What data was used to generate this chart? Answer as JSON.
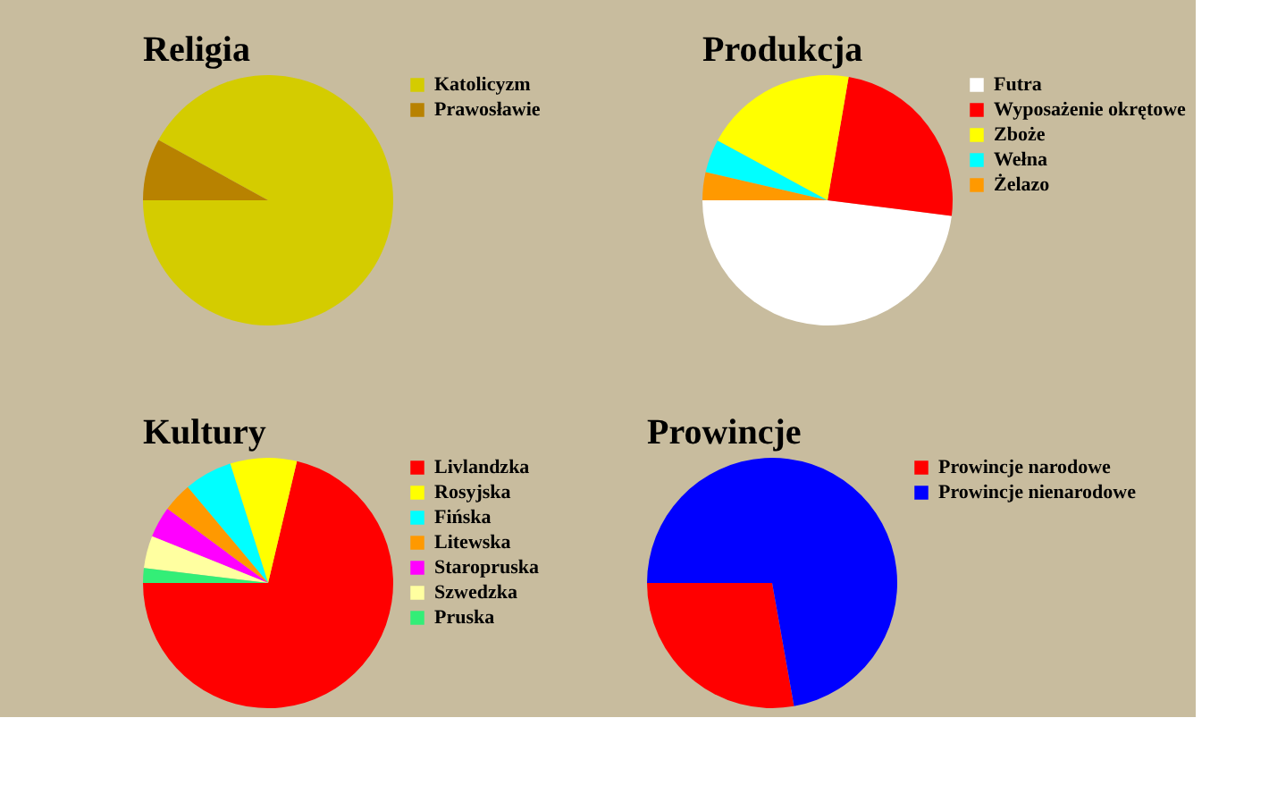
{
  "chart_data": [
    {
      "type": "pie",
      "title": "Religia",
      "categories": [
        "Katolicyzm",
        "Prawosławie"
      ],
      "values": [
        92,
        8
      ],
      "colors": [
        "#d4cc00",
        "#b88200"
      ],
      "legend": "right"
    },
    {
      "type": "pie",
      "title": "Produkcja",
      "categories": [
        "Futra",
        "Wyposażenie okrętowe",
        "Zboże",
        "Wełna",
        "Żelazo"
      ],
      "values": [
        48,
        24.3,
        19.8,
        4.3,
        3.6
      ],
      "colors": [
        "#ffffff",
        "#ff0000",
        "#ffff00",
        "#00ffff",
        "#ff9900"
      ],
      "legend": "right"
    },
    {
      "type": "pie",
      "title": "Kultury",
      "categories": [
        "Livlandzka",
        "Rosyjska",
        "Fińska",
        "Litewska",
        "Staropruska",
        "Szwedzka",
        "Pruska"
      ],
      "values": [
        71.3,
        8.6,
        6.2,
        3.8,
        4,
        4.2,
        1.9
      ],
      "colors": [
        "#ff0000",
        "#ffff00",
        "#00ffff",
        "#ff9900",
        "#ff00ff",
        "#ffffa0",
        "#33ee77"
      ],
      "legend": "right"
    },
    {
      "type": "pie",
      "title": "Prowincje",
      "categories": [
        "Prowincje narodowe",
        "Prowincje nienarodowe"
      ],
      "values": [
        27.8,
        72.2
      ],
      "colors": [
        "#ff0000",
        "#0000ff"
      ],
      "legend": "right"
    }
  ]
}
